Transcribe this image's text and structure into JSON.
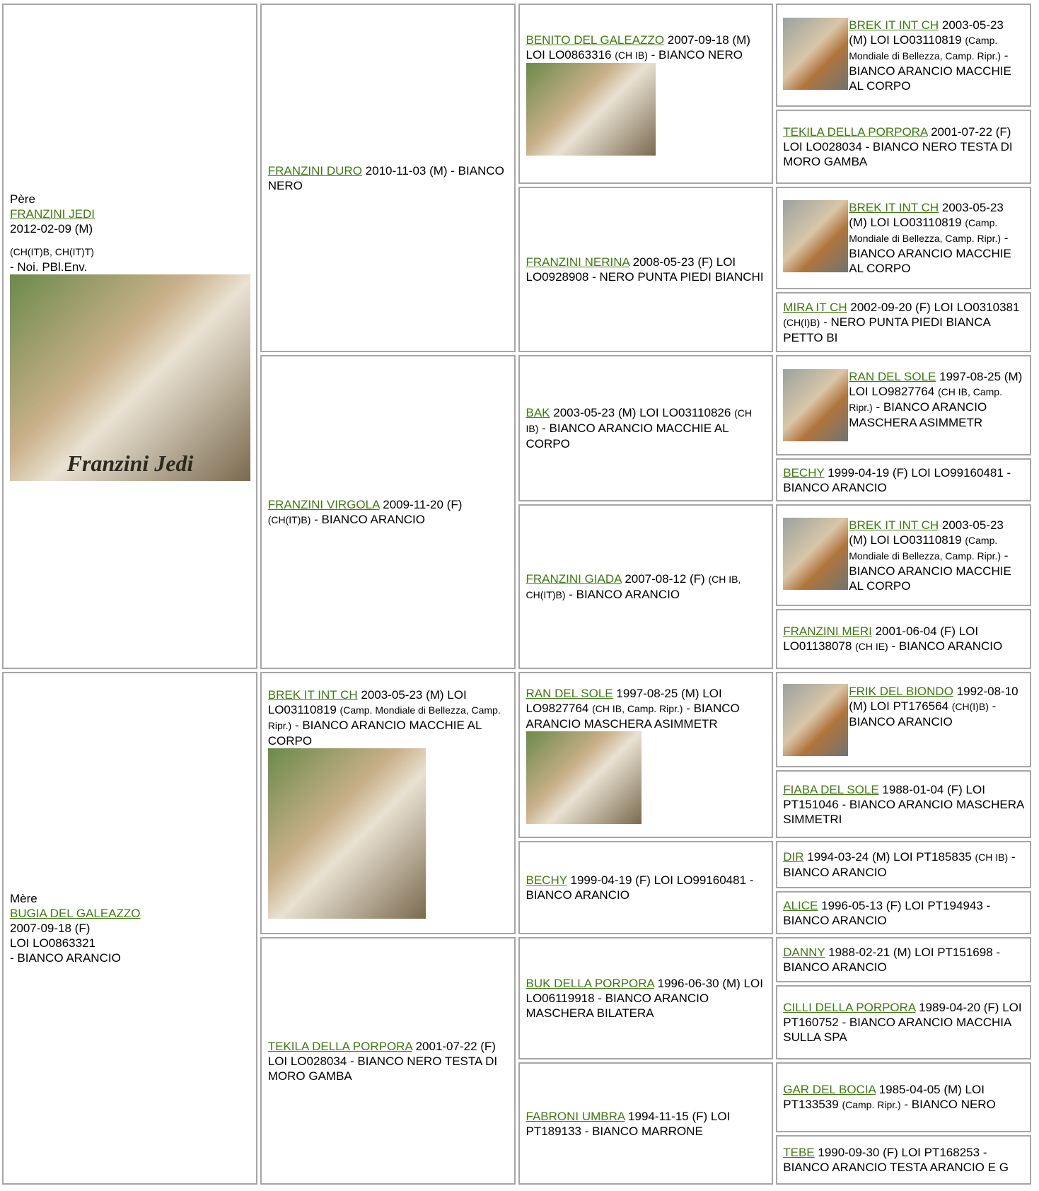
{
  "sire": {
    "label": "Père",
    "name": "FRANZINI JEDI",
    "lines": [
      "2012-02-09 (M)"
    ],
    "titles": "(CH(IT)B, CH(IT)T)",
    "colour": "- Noi. PBl.Env.",
    "photo_caption": "Franzini Jedi"
  },
  "dam": {
    "label": "Mère",
    "name": "BUGIA DEL GALEAZZO",
    "lines": [
      "2007-09-18 (F)",
      "LOI LO0863321",
      "- BIANCO ARANCIO"
    ]
  },
  "parents": [
    {
      "name": "FRANZINI DURO",
      "details": "2010-11-03 (M)",
      "colour": "- BIANCO NERO"
    },
    {
      "name": "FRANZINI VIRGOLA",
      "details": "2009-11-20 (F)",
      "titles": "(CH(IT)B)",
      "colour": "- BIANCO ARANCIO"
    },
    {
      "name": "BREK IT INT CH",
      "details": "2003-05-23 (M) LOI LO03110819",
      "titles": "(Camp. Mondiale di Bellezza, Camp. Ripr.)",
      "colour": "- BIANCO ARANCIO MACCHIE AL CORPO"
    },
    {
      "name": "TEKILA DELLA PORPORA",
      "details": "2001-07-22 (F) LOI LO028034",
      "colour": "- BIANCO NERO TESTA DI MORO GAMBA"
    }
  ],
  "grandparents": [
    {
      "name": "BENITO DEL GALEAZZO",
      "details": "2007-09-18 (M) LOI LO0863316",
      "titles": "(CH IB)",
      "colour": "- BIANCO NERO"
    },
    {
      "name": "FRANZINI NERINA",
      "details": "2008-05-23 (F) LOI LO0928908",
      "colour": "- NERO PUNTA PIEDI BIANCHI"
    },
    {
      "name": "BAK",
      "details": "2003-05-23 (M) LOI LO03110826",
      "titles": "(CH IB)",
      "colour": "- BIANCO ARANCIO MACCHIE AL CORPO"
    },
    {
      "name": "FRANZINI GIADA",
      "details": "2007-08-12 (F)",
      "titles": "(CH IB, CH(IT)B)",
      "colour": "- BIANCO ARANCIO"
    },
    {
      "name": "RAN DEL SOLE",
      "details": "1997-08-25 (M) LOI LO9827764",
      "titles": "(CH IB, Camp. Ripr.)",
      "colour": "- BIANCO ARANCIO MASCHERA ASIMMETR"
    },
    {
      "name": "BECHY",
      "details": "1999-04-19 (F) LOI LO99160481",
      "colour": "- BIANCO ARANCIO"
    },
    {
      "name": "BUK DELLA PORPORA",
      "details": "1996-06-30 (M) LOI LO06119918",
      "colour": "- BIANCO ARANCIO MASCHERA BILATERA"
    },
    {
      "name": "FABRONI UMBRA",
      "details": "1994-11-15 (F) LOI PT189133",
      "colour": "- BIANCO MARRONE"
    }
  ],
  "great_grandparents": [
    {
      "name": "BREK IT INT CH",
      "details": "2003-05-23 (M) LOI LO03110819",
      "titles": "(Camp. Mondiale di Bellezza, Camp. Ripr.)",
      "colour": "- BIANCO ARANCIO MACCHIE AL CORPO"
    },
    {
      "name": "TEKILA DELLA PORPORA",
      "details": "2001-07-22 (F) LOI LO028034",
      "colour": "- BIANCO NERO TESTA DI MORO GAMBA"
    },
    {
      "name": "BREK IT INT CH",
      "details": "2003-05-23 (M) LOI LO03110819",
      "titles": "(Camp. Mondiale di Bellezza, Camp. Ripr.)",
      "colour": "- BIANCO ARANCIO MACCHIE AL CORPO"
    },
    {
      "name": "MIRA IT CH",
      "details": "2002-09-20 (F) LOI LO0310381",
      "titles": "(CH(I)B)",
      "colour": "- NERO PUNTA PIEDI BIANCA PETTO BI"
    },
    {
      "name": "RAN DEL SOLE",
      "details": "1997-08-25 (M) LOI LO9827764",
      "titles": "(CH IB, Camp. Ripr.)",
      "colour": "- BIANCO ARANCIO MASCHERA ASIMMETR"
    },
    {
      "name": "BECHY",
      "details": "1999-04-19 (F) LOI LO99160481",
      "colour": "- BIANCO ARANCIO"
    },
    {
      "name": "BREK IT INT CH",
      "details": "2003-05-23 (M) LOI LO03110819",
      "titles": "(Camp. Mondiale di Bellezza, Camp. Ripr.)",
      "colour": "- BIANCO ARANCIO MACCHIE AL CORPO"
    },
    {
      "name": "FRANZINI MERI",
      "details": "2001-06-04 (F) LOI LO01138078",
      "titles": "(CH IE)",
      "colour": "- BIANCO ARANCIO"
    },
    {
      "name": "FRIK DEL BIONDO",
      "details": "1992-08-10 (M) LOI PT176564",
      "titles": "(CH(I)B)",
      "colour": "- BIANCO ARANCIO"
    },
    {
      "name": "FIABA DEL SOLE",
      "details": "1988-01-04 (F) LOI PT151046",
      "colour": "- BIANCO ARANCIO MASCHERA SIMMETRI"
    },
    {
      "name": "DIR",
      "details": "1994-03-24 (M) LOI PT185835",
      "titles": "(CH IB)",
      "colour": "- BIANCO ARANCIO"
    },
    {
      "name": "ALICE",
      "details": "1996-05-13 (F) LOI PT194943",
      "colour": "- BIANCO ARANCIO"
    },
    {
      "name": "DANNY",
      "details": "1988-02-21 (M) LOI PT151698",
      "colour": "- BIANCO ARANCIO"
    },
    {
      "name": "CILLI DELLA PORPORA",
      "details": "1989-04-20 (F) LOI PT160752",
      "colour": "- BIANCO ARANCIO MACCHIA SULLA SPA"
    },
    {
      "name": "GAR DEL BOCIA",
      "details": "1985-04-05 (M) LOI PT133539",
      "titles": "(Camp. Ripr.)",
      "colour": "- BIANCO NERO"
    },
    {
      "name": "TEBE",
      "details": "1990-09-30 (F) LOI PT168253",
      "colour": "- BIANCO ARANCIO TESTA ARANCIO E G"
    }
  ]
}
